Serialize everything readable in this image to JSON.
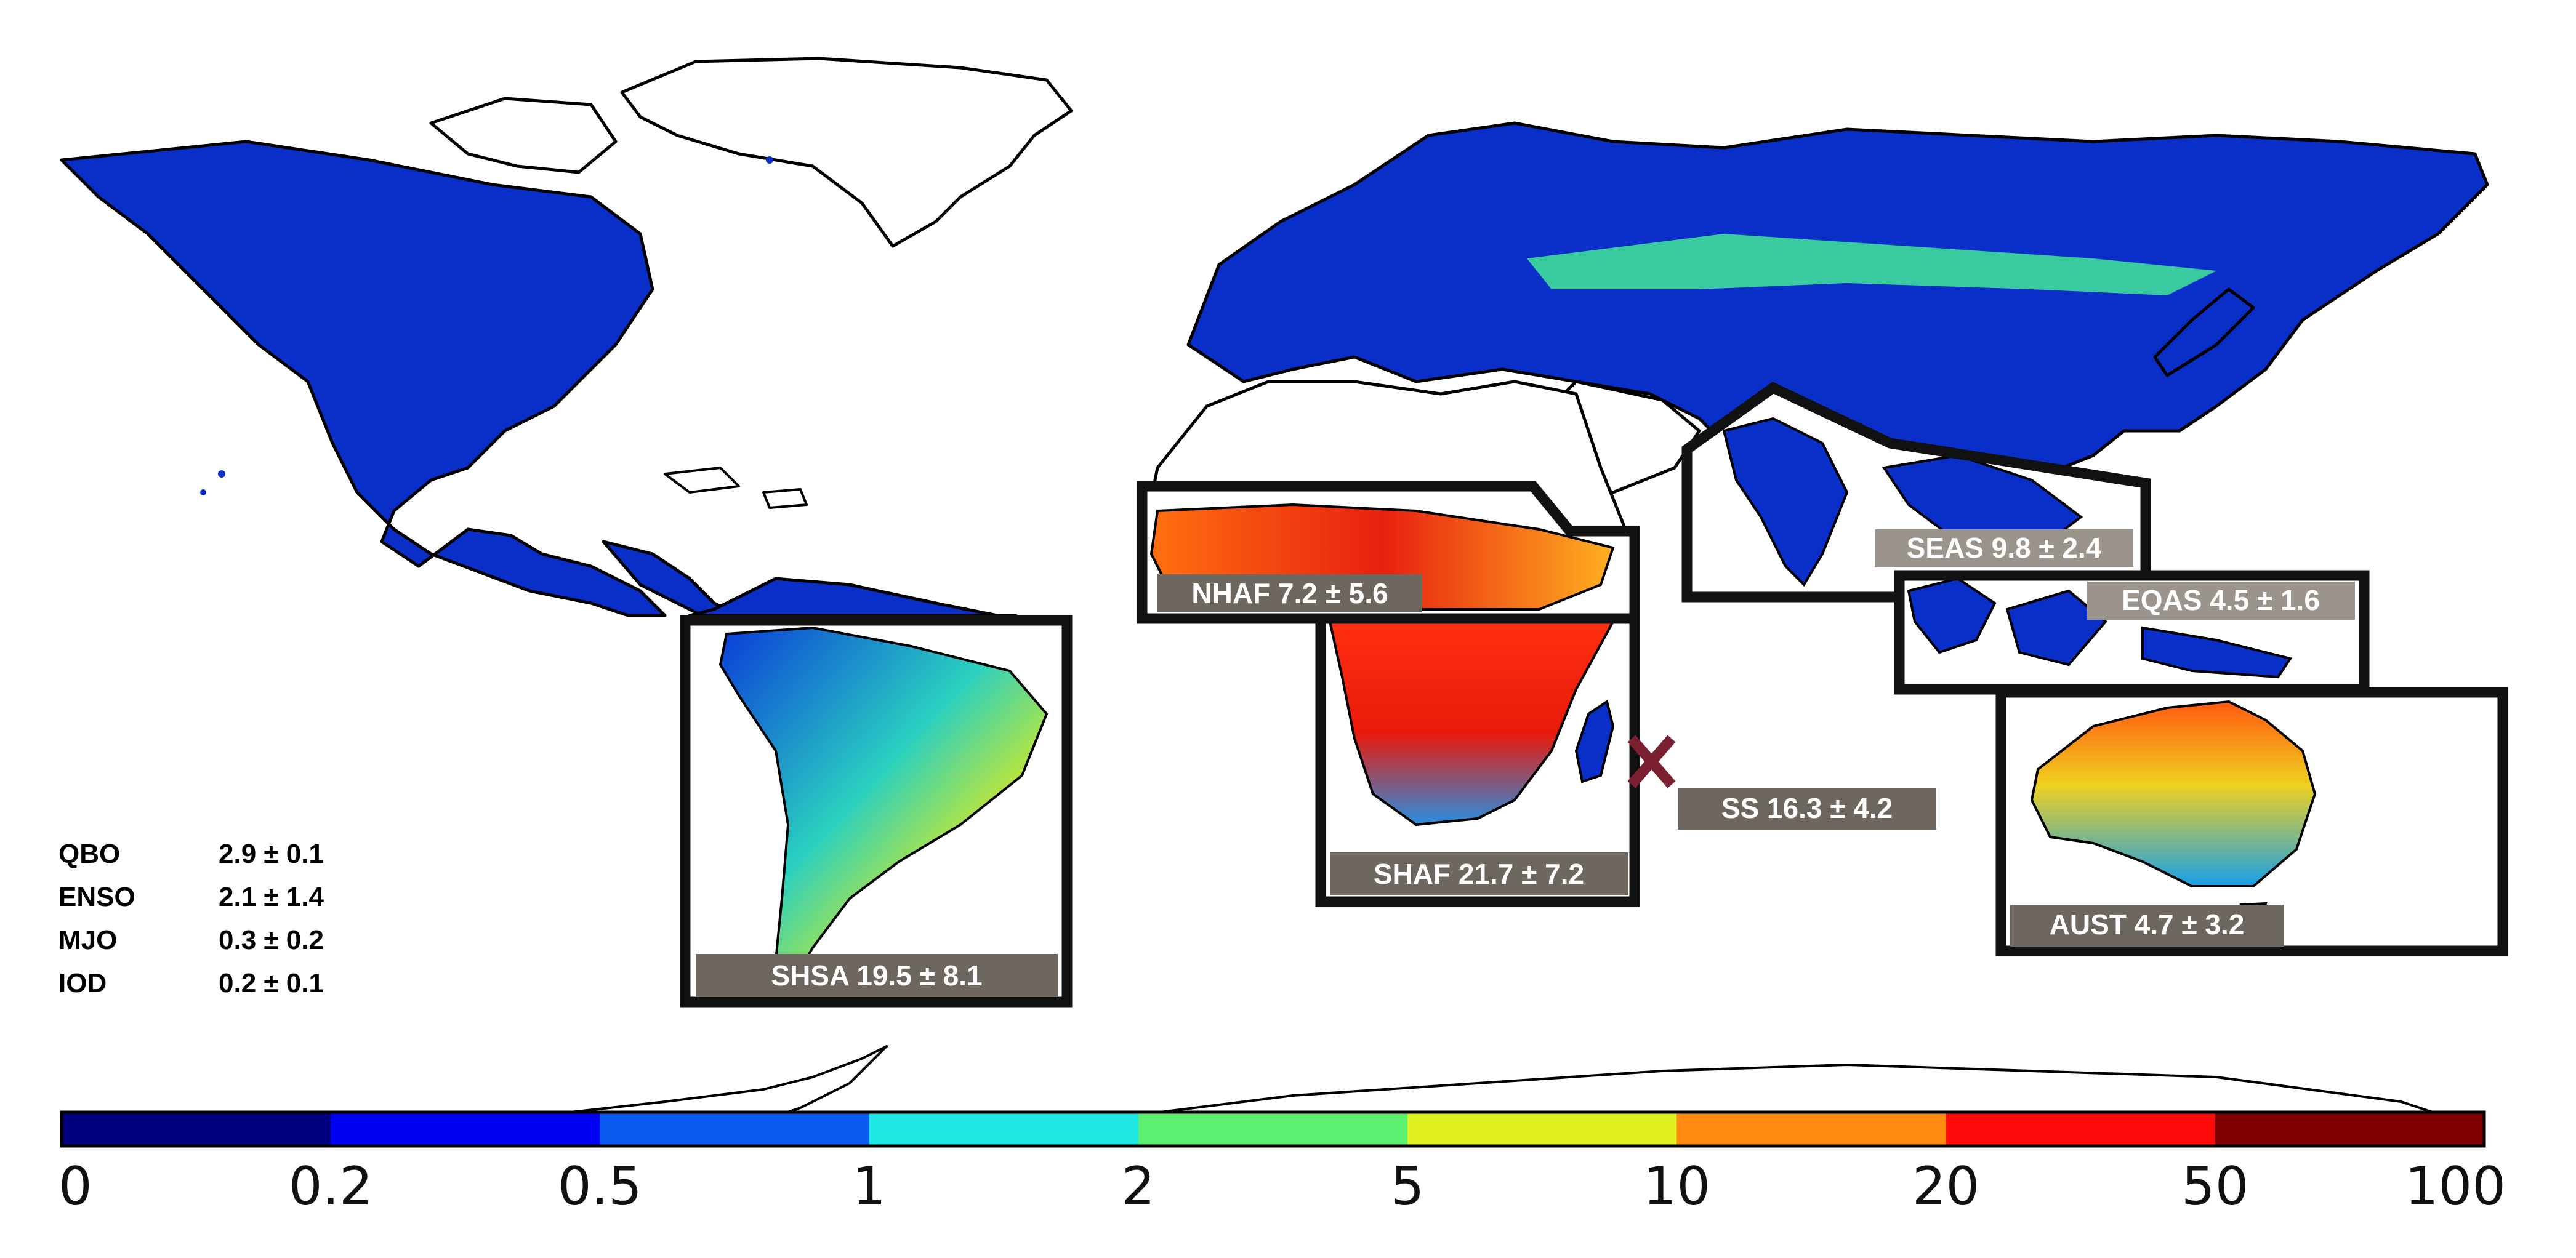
{
  "regions": [
    {
      "id": "shsa",
      "label": "SHSA 19.5 ± 8.1"
    },
    {
      "id": "nhaf",
      "label": "NHAF 7.2 ± 5.6"
    },
    {
      "id": "shaf",
      "label": "SHAF 21.7 ± 7.2"
    },
    {
      "id": "seas",
      "label": "SEAS 9.8 ± 2.4"
    },
    {
      "id": "eqas",
      "label": "EQAS 4.5 ± 1.6"
    },
    {
      "id": "aust",
      "label": "AUST 4.7 ± 3.2"
    }
  ],
  "site_marker": {
    "label": "SS 16.3 ± 4.2",
    "color": "#7a2030",
    "symbol": "×"
  },
  "stats": [
    {
      "name": "QBO",
      "value": "2.9 ± 0.1"
    },
    {
      "name": "ENSO",
      "value": "2.1 ± 1.4"
    },
    {
      "name": "MJO",
      "value": "0.3 ± 0.2"
    },
    {
      "name": "IOD",
      "value": "0.2 ± 0.1"
    }
  ],
  "colorbar": {
    "ticks": [
      "0",
      "0.2",
      "0.5",
      "1",
      "2",
      "5",
      "10",
      "20",
      "50",
      "100"
    ],
    "colors": [
      "#00007f",
      "#0000f5",
      "#0a5cf0",
      "#1ee6e0",
      "#5cf070",
      "#e0f020",
      "#ff8a12",
      "#ff0a0a",
      "#7f0000"
    ]
  },
  "label_background": "#6e6760"
}
